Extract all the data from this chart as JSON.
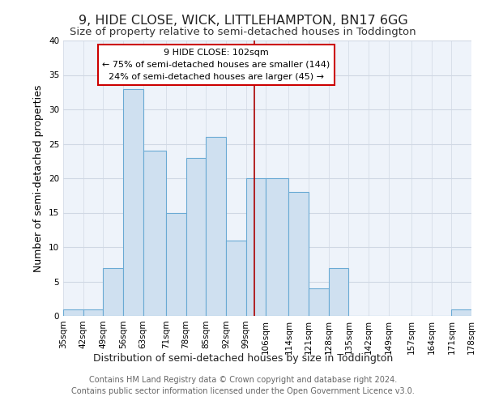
{
  "title": "9, HIDE CLOSE, WICK, LITTLEHAMPTON, BN17 6GG",
  "subtitle": "Size of property relative to semi-detached houses in Toddington",
  "xlabel": "Distribution of semi-detached houses by size in Toddington",
  "ylabel": "Number of semi-detached properties",
  "footer_line1": "Contains HM Land Registry data © Crown copyright and database right 2024.",
  "footer_line2": "Contains public sector information licensed under the Open Government Licence v3.0.",
  "bin_edges": [
    35,
    42,
    49,
    56,
    63,
    71,
    78,
    85,
    92,
    99,
    106,
    114,
    121,
    128,
    135,
    142,
    149,
    157,
    164,
    171,
    178
  ],
  "bin_labels": [
    "35sqm",
    "42sqm",
    "49sqm",
    "56sqm",
    "63sqm",
    "71sqm",
    "78sqm",
    "85sqm",
    "92sqm",
    "99sqm",
    "106sqm",
    "114sqm",
    "121sqm",
    "128sqm",
    "135sqm",
    "142sqm",
    "149sqm",
    "157sqm",
    "164sqm",
    "171sqm",
    "178sqm"
  ],
  "counts": [
    1,
    1,
    7,
    33,
    24,
    15,
    23,
    26,
    11,
    20,
    20,
    18,
    4,
    7,
    0,
    0,
    0,
    0,
    0,
    1
  ],
  "bar_color": "#cfe0f0",
  "bar_edge_color": "#6aaad4",
  "grid_color": "#d0d8e4",
  "bg_color": "#eef3fa",
  "red_line_x": 102,
  "ylim": [
    0,
    40
  ],
  "yticks": [
    0,
    5,
    10,
    15,
    20,
    25,
    30,
    35,
    40
  ],
  "annotation_title": "9 HIDE CLOSE: 102sqm",
  "annotation_line1": "← 75% of semi-detached houses are smaller (144)",
  "annotation_line2": "24% of semi-detached houses are larger (45) →",
  "annotation_box_color": "#ffffff",
  "annotation_border_color": "#cc0000",
  "title_fontsize": 11.5,
  "subtitle_fontsize": 9.5,
  "axis_label_fontsize": 9,
  "tick_fontsize": 7.5,
  "annotation_fontsize": 8,
  "footer_fontsize": 7
}
